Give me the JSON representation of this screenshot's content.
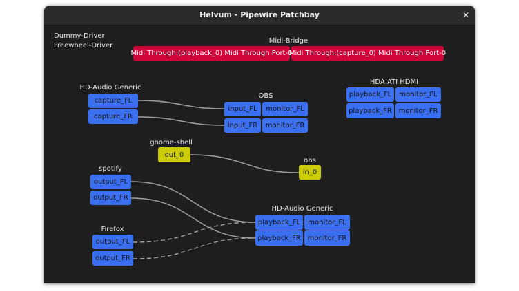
{
  "window": {
    "title": "Helvum - Pipewire Patchbay",
    "close_icon": "close-icon"
  },
  "colors": {
    "audio_port": "#3a6ff0",
    "midi_port": "#d0063a",
    "video_port": "#cccc0a",
    "link": "#a0a0a0",
    "background": "#1e1e1e"
  },
  "unlinked_nodes": [
    "Dummy-Driver",
    "Freewheel-Driver"
  ],
  "nodes": {
    "midi_bridge": {
      "name": "Midi-Bridge",
      "ports": [
        "Midi Through:(playback_0) Midi Through Port-0",
        "Midi Through:(capture_0) Midi Through Port-0"
      ]
    },
    "hd_audio_in": {
      "name": "HD-Audio Generic",
      "ports": [
        "capture_FL",
        "capture_FR"
      ]
    },
    "obs_audio": {
      "name": "OBS",
      "inputs": [
        "input_FL",
        "input_FR"
      ],
      "outputs": [
        "monitor_FL",
        "monitor_FR"
      ]
    },
    "hda_hdmi": {
      "name": "HDA ATI HDMI",
      "inputs": [
        "playback_FL",
        "playback_FR"
      ],
      "outputs": [
        "monitor_FL",
        "monitor_FR"
      ]
    },
    "gnome_shell": {
      "name": "gnome-shell",
      "ports": [
        "out_0"
      ]
    },
    "obs_video": {
      "name": "obs",
      "ports": [
        "in_0"
      ]
    },
    "spotify": {
      "name": "spotify",
      "ports": [
        "output_FL",
        "output_FR"
      ]
    },
    "hd_audio_out": {
      "name": "HD-Audio Generic",
      "inputs": [
        "playback_FL",
        "playback_FR"
      ],
      "outputs": [
        "monitor_FL",
        "monitor_FR"
      ]
    },
    "firefox": {
      "name": "Firefox",
      "ports": [
        "output_FL",
        "output_FR"
      ]
    }
  },
  "links": [
    {
      "from": "HD-Audio Generic:capture_FL",
      "to": "OBS:input_FL",
      "active": true
    },
    {
      "from": "HD-Audio Generic:capture_FR",
      "to": "OBS:input_FR",
      "active": true
    },
    {
      "from": "gnome-shell:out_0",
      "to": "obs:in_0",
      "active": true
    },
    {
      "from": "spotify:output_FL",
      "to": "HD-Audio Generic:playback_FL",
      "active": true
    },
    {
      "from": "spotify:output_FR",
      "to": "HD-Audio Generic:playback_FR",
      "active": true
    },
    {
      "from": "Firefox:output_FL",
      "to": "HD-Audio Generic:playback_FL",
      "active": false
    },
    {
      "from": "Firefox:output_FR",
      "to": "HD-Audio Generic:playback_FR",
      "active": false
    }
  ]
}
